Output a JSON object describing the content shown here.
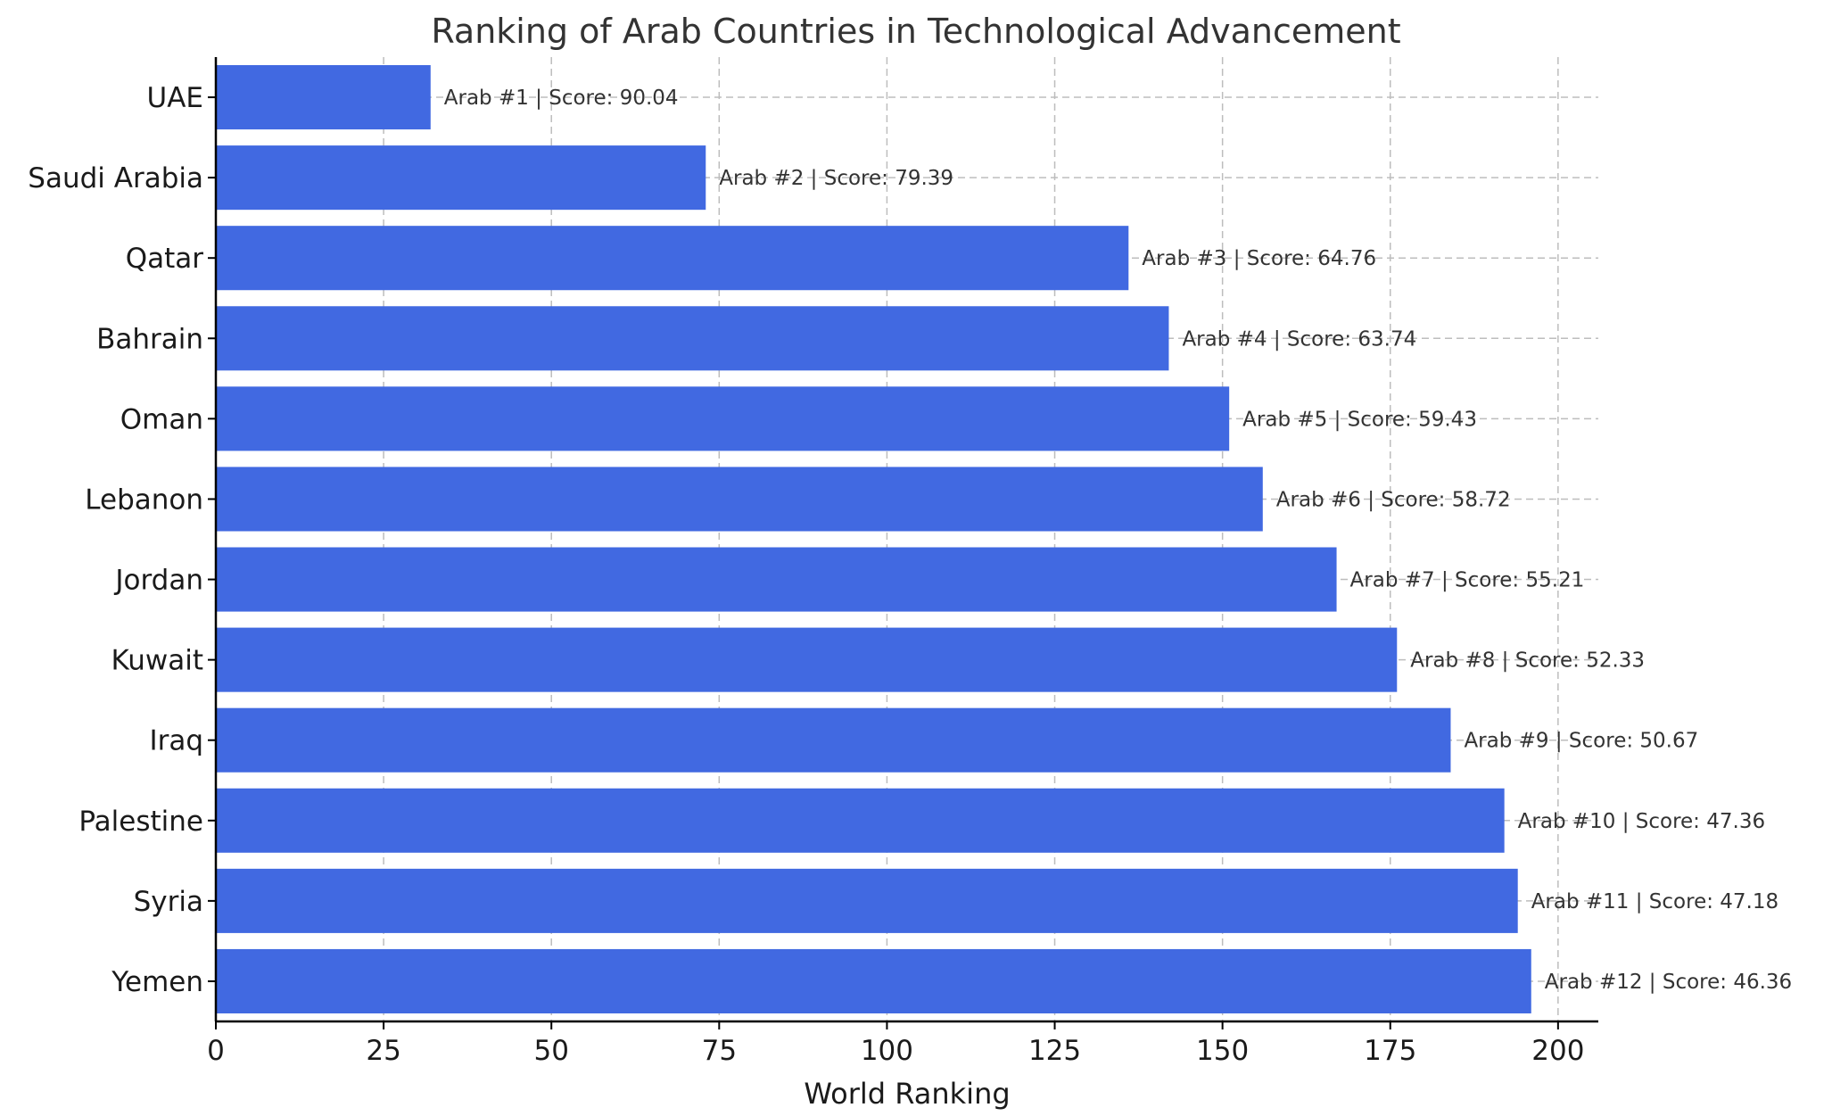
{
  "chart_data": {
    "type": "bar",
    "orientation": "horizontal",
    "title": "Ranking of Arab Countries in Technological Advancement",
    "xlabel": "World Ranking",
    "ylabel": "",
    "xlim": [
      0,
      206
    ],
    "xticks": [
      0,
      25,
      50,
      75,
      100,
      125,
      150,
      175,
      200
    ],
    "grid": true,
    "bar_color": "#4169E1",
    "categories": [
      "UAE",
      "Saudi Arabia",
      "Qatar",
      "Bahrain",
      "Oman",
      "Lebanon",
      "Jordan",
      "Kuwait",
      "Iraq",
      "Palestine",
      "Syria",
      "Yemen"
    ],
    "values": [
      32,
      73,
      136,
      142,
      151,
      156,
      167,
      176,
      184,
      192,
      194,
      196
    ],
    "annotations": [
      "Arab #1 | Score: 90.04",
      "Arab #2 | Score: 79.39",
      "Arab #3 | Score: 64.76",
      "Arab #4 | Score: 63.74",
      "Arab #5 | Score: 59.43",
      "Arab #6 | Score: 58.72",
      "Arab #7 | Score: 55.21",
      "Arab #8 | Score: 52.33",
      "Arab #9 | Score: 50.67",
      "Arab #10 | Score: 47.36",
      "Arab #11 | Score: 47.18",
      "Arab #12 | Score: 46.36"
    ]
  }
}
